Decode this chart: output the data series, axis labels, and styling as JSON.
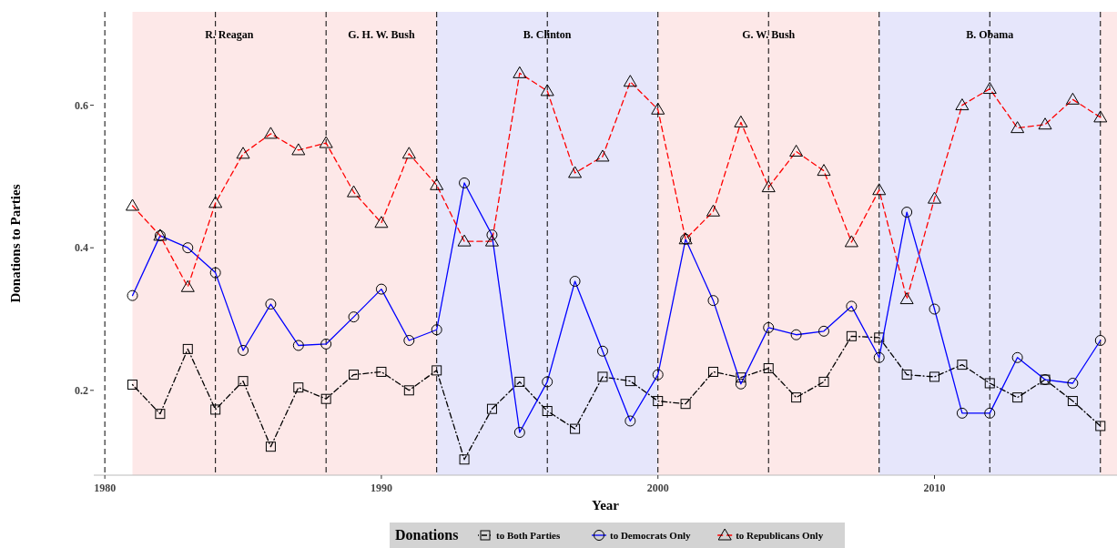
{
  "chart_data": {
    "type": "line",
    "xlabel": "Year",
    "ylabel": "Donations to Parties",
    "legend_title": "Donations",
    "legend": "bottom",
    "grid": false,
    "x": [
      1981,
      1982,
      1983,
      1984,
      1985,
      1986,
      1987,
      1988,
      1989,
      1990,
      1991,
      1992,
      1993,
      1994,
      1995,
      1996,
      1997,
      1998,
      1999,
      2000,
      2001,
      2002,
      2003,
      2004,
      2005,
      2006,
      2007,
      2008,
      2009,
      2010,
      2011,
      2012,
      2013,
      2014,
      2015,
      2016
    ],
    "xlim": [
      1979.6,
      2016.6
    ],
    "xticks": [
      1980,
      1990,
      2000,
      2010
    ],
    "ylim": [
      0.081,
      0.731
    ],
    "yticks": [
      {
        "value": 0.2,
        "label": "0.2"
      },
      {
        "value": 0.4,
        "label": "0.4"
      },
      {
        "value": 0.6,
        "label": "0.6"
      }
    ],
    "series": [
      {
        "name": "to Both Parties",
        "color": "#000000",
        "marker": "square",
        "line_style": "dashdot",
        "values": [
          0.208,
          0.167,
          0.258,
          0.173,
          0.213,
          0.121,
          0.204,
          0.188,
          0.222,
          0.226,
          0.2,
          0.228,
          0.103,
          0.174,
          0.212,
          0.171,
          0.146,
          0.219,
          0.213,
          0.185,
          0.181,
          0.226,
          0.218,
          0.231,
          0.19,
          0.212,
          0.276,
          0.274,
          0.222,
          0.219,
          0.236,
          0.21,
          0.19,
          0.215,
          0.185,
          0.15
        ]
      },
      {
        "name": "to Democrats Only",
        "color": "#0000ff",
        "marker": "circle",
        "line_style": "solid",
        "values": [
          0.333,
          0.417,
          0.4,
          0.365,
          0.256,
          0.321,
          0.263,
          0.265,
          0.303,
          0.342,
          0.27,
          0.285,
          0.491,
          0.418,
          0.141,
          0.212,
          0.353,
          0.255,
          0.157,
          0.222,
          0.412,
          0.326,
          0.209,
          0.288,
          0.278,
          0.283,
          0.318,
          0.246,
          0.45,
          0.314,
          0.168,
          0.168,
          0.246,
          0.215,
          0.21,
          0.27
        ]
      },
      {
        "name": "to Republicans Only",
        "color": "#ff0000",
        "marker": "triangle",
        "line_style": "dashed",
        "values": [
          0.459,
          0.417,
          0.345,
          0.463,
          0.532,
          0.56,
          0.537,
          0.547,
          0.478,
          0.435,
          0.532,
          0.488,
          0.409,
          0.409,
          0.645,
          0.62,
          0.505,
          0.528,
          0.633,
          0.594,
          0.412,
          0.451,
          0.576,
          0.485,
          0.535,
          0.508,
          0.408,
          0.481,
          0.328,
          0.469,
          0.6,
          0.623,
          0.568,
          0.573,
          0.608,
          0.583
        ]
      }
    ],
    "bands": [
      {
        "axis": "x",
        "from": 1981,
        "to": 1988,
        "label": "R. Reagan",
        "color": "#fde8e8"
      },
      {
        "axis": "x",
        "from": 1988,
        "to": 1992,
        "label": "G. H. W. Bush",
        "color": "#fde8e8"
      },
      {
        "axis": "x",
        "from": 1992,
        "to": 2000,
        "label": "B. Clinton",
        "color": "#e6e6fb"
      },
      {
        "axis": "x",
        "from": 2000,
        "to": 2008,
        "label": "G. W. Bush",
        "color": "#fde8e8"
      },
      {
        "axis": "x",
        "from": 2008,
        "to": 2016,
        "label": "B. Obama",
        "color": "#e6e6fb"
      },
      {
        "axis": "x",
        "from": 2016,
        "to": 2016.6,
        "color": "#fde8e8"
      }
    ],
    "ref_lines": [
      {
        "axis": "x",
        "value": 1980,
        "color": "#000000",
        "line_style": "dashed"
      },
      {
        "axis": "x",
        "value": 1984,
        "color": "#000000",
        "line_style": "dashed"
      },
      {
        "axis": "x",
        "value": 1988,
        "color": "#000000",
        "line_style": "dashed"
      },
      {
        "axis": "x",
        "value": 1992,
        "color": "#000000",
        "line_style": "dashed"
      },
      {
        "axis": "x",
        "value": 1996,
        "color": "#000000",
        "line_style": "dashed"
      },
      {
        "axis": "x",
        "value": 2000,
        "color": "#000000",
        "line_style": "dashed"
      },
      {
        "axis": "x",
        "value": 2004,
        "color": "#000000",
        "line_style": "dashed"
      },
      {
        "axis": "x",
        "value": 2008,
        "color": "#000000",
        "line_style": "dashed"
      },
      {
        "axis": "x",
        "value": 2012,
        "color": "#000000",
        "line_style": "dashed"
      },
      {
        "axis": "x",
        "value": 2016,
        "color": "#000000",
        "line_style": "dashed"
      }
    ]
  }
}
